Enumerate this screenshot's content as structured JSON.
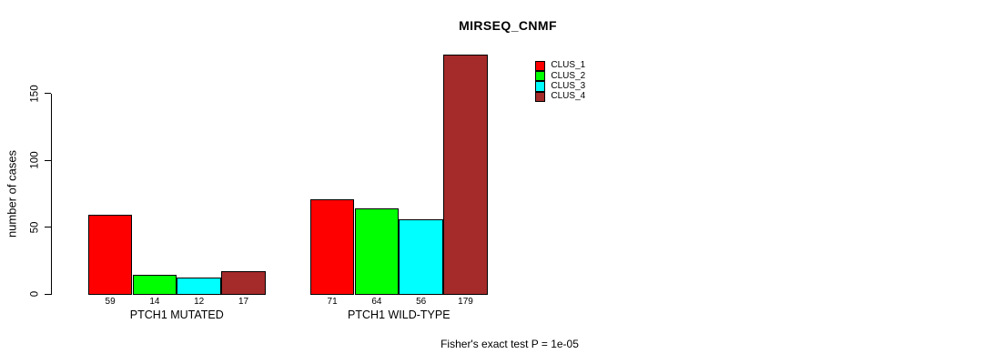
{
  "chart_data": {
    "type": "bar",
    "title": "MIRSEQ_CNMF",
    "ylabel": "number of cases",
    "xlabel": "",
    "yticks": [
      0,
      50,
      100,
      150
    ],
    "ylim": [
      0,
      185
    ],
    "grid": false,
    "legend_position": "upper-right-of-plot",
    "categories": [
      "PTCH1 MUTATED",
      "PTCH1 WILD-TYPE"
    ],
    "series": [
      {
        "name": "CLUS_1",
        "color": "#FF0000",
        "values": [
          59,
          71
        ]
      },
      {
        "name": "CLUS_2",
        "color": "#00FF00",
        "values": [
          14,
          64
        ]
      },
      {
        "name": "CLUS_3",
        "color": "#00FFFF",
        "values": [
          12,
          56
        ]
      },
      {
        "name": "CLUS_4",
        "color": "#A52A2A",
        "values": [
          17,
          179
        ]
      }
    ],
    "footnote": "Fisher's exact test P = 1e-05"
  },
  "colors": {
    "background": "#FFFFFF",
    "axis": "#000000",
    "text": "#000000"
  }
}
